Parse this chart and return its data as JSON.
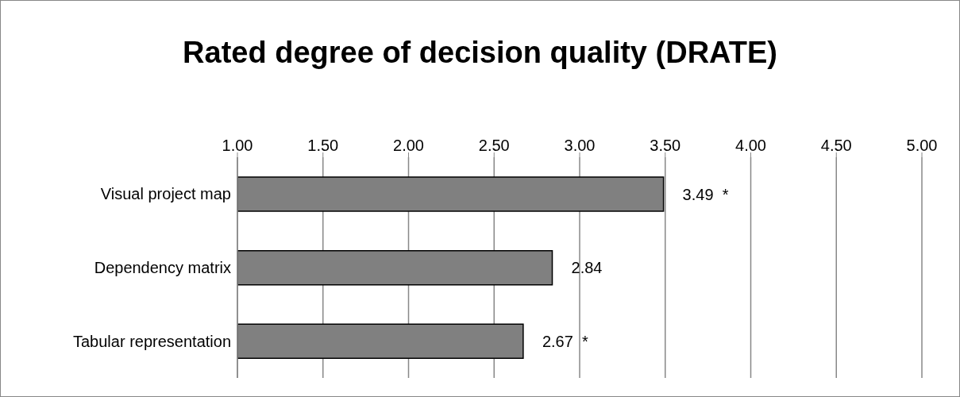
{
  "chart_data": {
    "type": "bar",
    "orientation": "horizontal",
    "title": "Rated degree of decision quality (DRATE)",
    "categories": [
      "Visual project map",
      "Dependency matrix",
      "Tabular representation"
    ],
    "values": [
      3.49,
      2.84,
      2.67
    ],
    "value_labels": [
      "3.49  *",
      "2.84",
      "2.67  *"
    ],
    "color": "#808080",
    "xlim": [
      1,
      5
    ],
    "xticks": [
      {
        "value": 1,
        "label": "1.00"
      },
      {
        "value": 1.5,
        "label": "1.50"
      },
      {
        "value": 2,
        "label": "2.00"
      },
      {
        "value": 2.5,
        "label": "2.50"
      },
      {
        "value": 3,
        "label": "3.00"
      },
      {
        "value": 3.5,
        "label": "3.50"
      },
      {
        "value": 4,
        "label": "4.00"
      },
      {
        "value": 4.5,
        "label": "4.50"
      },
      {
        "value": 5,
        "label": "5.00"
      }
    ],
    "grid": "x"
  }
}
